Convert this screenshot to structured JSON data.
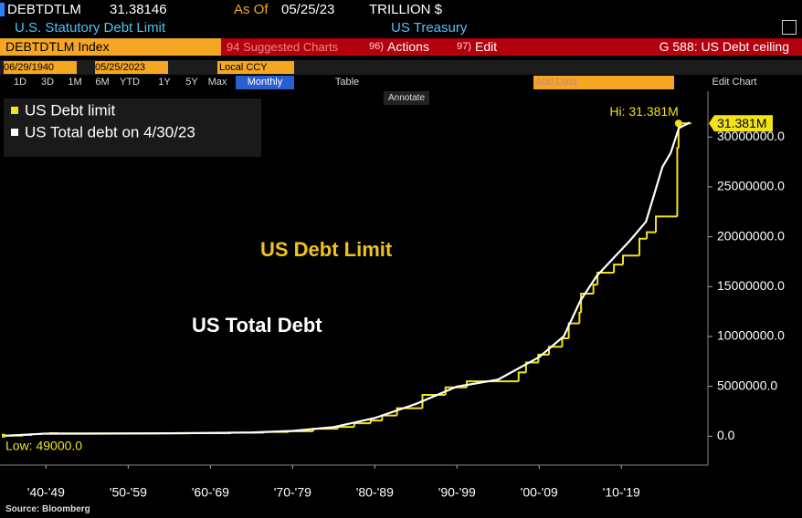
{
  "header": {
    "ticker": "DEBTDTLM",
    "price": "31.38146",
    "as_of_label": "As Of",
    "as_of_date": "05/25/23",
    "units": "TRILLION $",
    "description": "U.S. Statutory Debt Limit",
    "source_name": "US Treasury"
  },
  "command_bar": {
    "security": "DEBTDTLM Index",
    "suggested": "94 Suggested Charts",
    "actions_num": "96)",
    "actions": "Actions",
    "edit_num": "97)",
    "edit": "Edit",
    "page": "G 588: US Debt ceiling"
  },
  "date_bar": {
    "start": "06/29/1940",
    "end": "05/25/2023",
    "currency": "Local CCY"
  },
  "periods": [
    "1D",
    "3D",
    "1M",
    "6M",
    "YTD",
    "1Y",
    "5Y",
    "Max"
  ],
  "frequency": "Monthly",
  "table_button": "Table",
  "add_data": "Add Data",
  "edit_chart": "Edit Chart",
  "annotate": "Annotate",
  "source": "Source: Bloomberg",
  "chart_data": {
    "type": "line",
    "xlim": [
      1939.4,
      2025.2
    ],
    "xticks": [
      {
        "value": 1945,
        "label": "'40-'49"
      },
      {
        "value": 1955,
        "label": "'50-'59"
      },
      {
        "value": 1965,
        "label": "'60-'69"
      },
      {
        "value": 1975,
        "label": "'70-'79"
      },
      {
        "value": 1985,
        "label": "'80-'89"
      },
      {
        "value": 1995,
        "label": "'90-'99"
      },
      {
        "value": 2005,
        "label": "'00-'09"
      },
      {
        "value": 2015,
        "label": "'10-'19"
      }
    ],
    "ylim": [
      -2900000,
      34600000
    ],
    "yticks": [
      {
        "value": 0,
        "label": "0.0"
      },
      {
        "value": 5000000,
        "label": "5000000.0"
      },
      {
        "value": 10000000,
        "label": "10000000.0"
      },
      {
        "value": 15000000,
        "label": "15000000.0"
      },
      {
        "value": 20000000,
        "label": "20000000.0"
      },
      {
        "value": 25000000,
        "label": "25000000.0"
      },
      {
        "value": 30000000,
        "label": "30000000.0"
      }
    ],
    "grid": false,
    "series": [
      {
        "name": "US Debt limit",
        "color": "#f2e318",
        "step": true,
        "x": [
          1940.5,
          1941.2,
          1942.2,
          1943.3,
          1944.5,
          1945.5,
          1946.5,
          1958.5,
          1962.5,
          1967.5,
          1971.5,
          1974.5,
          1977.5,
          1980.5,
          1982.5,
          1984.5,
          1985.9,
          1987.7,
          1990.8,
          1993.6,
          1996.2,
          2002.5,
          2003.4,
          2004.9,
          2006.2,
          2007.8,
          2008.6,
          2009.9,
          2010.1,
          2011.6,
          2012.1,
          2014.1,
          2015.2,
          2017.2,
          2018.1,
          2019.2,
          2021.8,
          2021.96,
          2023.4
        ],
        "values": [
          49000,
          65000,
          125000,
          210000,
          260000,
          300000,
          275000,
          288000,
          300000,
          358000,
          430000,
          495000,
          752000,
          935100,
          1290200,
          1573000,
          2078700,
          2800000,
          4145000,
          4900000,
          5500000,
          6400000,
          7384000,
          8184000,
          8965000,
          9815000,
          11315000,
          12394000,
          14294000,
          15194000,
          16394000,
          17212000,
          18113000,
          19809000,
          20456000,
          22030000,
          28901000,
          31381000,
          31381000
        ]
      },
      {
        "name": "US Total debt on 4/30/23",
        "color": "#ffffff",
        "step": false,
        "x": [
          1940,
          1945,
          1950,
          1960,
          1970,
          1975,
          1980,
          1985,
          1990,
          1995,
          2000,
          2005,
          2008,
          2010,
          2012,
          2014,
          2016,
          2018,
          2020,
          2021,
          2022,
          2023.33
        ],
        "values": [
          43000,
          259000,
          257000,
          290000,
          370000,
          533000,
          907000,
          1823000,
          3233000,
          4974000,
          5674000,
          7933000,
          10025000,
          13562000,
          16066000,
          17824000,
          19573000,
          21516000,
          27000000,
          28400000,
          30900000,
          31458000
        ]
      }
    ],
    "annotations": [
      "US Debt Limit",
      "US Total Debt"
    ],
    "hi": {
      "x": 2021.96,
      "value": 31381000,
      "label": "Hi: 31.381M"
    },
    "last_value": {
      "value": 31381000,
      "label": "31.381M"
    },
    "low": {
      "value": 49000,
      "label": "Low: 49000.0"
    }
  }
}
